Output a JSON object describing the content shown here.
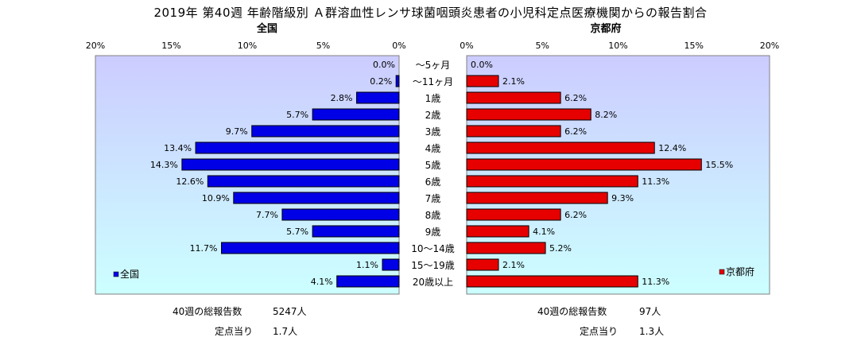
{
  "title": "2019年 第40週 年齢階級別 Ａ群溶血性レンサ球菌咽頭炎患者の小児科定点医療機関からの報告割合",
  "icons": {
    "legend_left": "blue-square-marker",
    "legend_right": "red-square-marker"
  },
  "colors": {
    "left_bar": "#0000e6",
    "right_bar": "#e60000",
    "plot_bg_top": "#ccccff",
    "plot_bg_bottom": "#ccffff"
  },
  "chart_data": [
    {
      "type": "bar",
      "orientation": "horizontal",
      "direction": "leftward",
      "region_label": "全国",
      "legend": "全国",
      "legend_placement": "bottom-left",
      "categories": [
        "～5ヶ月",
        "～11ヶ月",
        "1歳",
        "2歳",
        "3歳",
        "4歳",
        "5歳",
        "6歳",
        "7歳",
        "8歳",
        "9歳",
        "10～14歳",
        "15～19歳",
        "20歳以上"
      ],
      "values": [
        0.0,
        0.2,
        2.8,
        5.7,
        9.7,
        13.4,
        14.3,
        12.6,
        10.9,
        7.7,
        5.7,
        11.7,
        1.1,
        4.1
      ],
      "data_labels": [
        "0.0%",
        "0.2%",
        "2.8%",
        "5.7%",
        "9.7%",
        "13.4%",
        "14.3%",
        "12.6%",
        "10.9%",
        "7.7%",
        "5.7%",
        "11.7%",
        "1.1%",
        "4.1%"
      ],
      "xlim": [
        0,
        20
      ],
      "x_ticks": [
        "20%",
        "15%",
        "10%",
        "5%",
        "0%"
      ],
      "grid": false
    },
    {
      "type": "bar",
      "orientation": "horizontal",
      "direction": "rightward",
      "region_label": "京都府",
      "legend": "京都府",
      "legend_placement": "bottom-right",
      "categories": [
        "～5ヶ月",
        "～11ヶ月",
        "1歳",
        "2歳",
        "3歳",
        "4歳",
        "5歳",
        "6歳",
        "7歳",
        "8歳",
        "9歳",
        "10～14歳",
        "15～19歳",
        "20歳以上"
      ],
      "values": [
        0.0,
        2.1,
        6.2,
        8.2,
        6.2,
        12.4,
        15.5,
        11.3,
        9.3,
        6.2,
        4.1,
        5.2,
        2.1,
        11.3
      ],
      "data_labels": [
        "0.0%",
        "2.1%",
        "6.2%",
        "8.2%",
        "6.2%",
        "12.4%",
        "15.5%",
        "11.3%",
        "9.3%",
        "6.2%",
        "4.1%",
        "5.2%",
        "2.1%",
        "11.3%"
      ],
      "xlim": [
        0,
        20
      ],
      "x_ticks": [
        "0%",
        "5%",
        "10%",
        "15%",
        "20%"
      ],
      "grid": false
    }
  ],
  "summary": {
    "left": {
      "total_label": "40週の総報告数",
      "total_value": "5247人",
      "per_label": "定点当り",
      "per_value": "1.7人"
    },
    "right": {
      "total_label": "40週の総報告数",
      "total_value": "97人",
      "per_label": "定点当り",
      "per_value": "1.3人"
    }
  }
}
